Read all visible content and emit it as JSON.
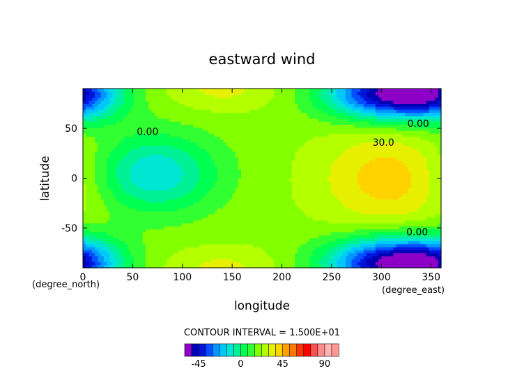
{
  "chart_data": {
    "type": "heatmap",
    "title": "eastward wind",
    "xlabel": "longitude",
    "ylabel": "latitude",
    "x_unit": "(degree_east)",
    "y_unit": "(degree_north)",
    "xlim": [
      0,
      360
    ],
    "ylim": [
      -90,
      90
    ],
    "x_ticks": [
      0,
      50,
      100,
      150,
      200,
      250,
      300,
      350
    ],
    "y_ticks": [
      -50,
      0,
      50
    ],
    "contour_interval_text": "CONTOUR INTERVAL = 1.500E+01",
    "contour_labels": [
      {
        "text": "0.00",
        "lon": 65,
        "lat": 47
      },
      {
        "text": "0.00",
        "lon": 337,
        "lat": 55
      },
      {
        "text": "30.0",
        "lon": 302,
        "lat": 36
      },
      {
        "text": "0.00",
        "lon": 336,
        "lat": -54
      }
    ],
    "colorbar": {
      "levels": [
        -60,
        -52.5,
        -45,
        -37.5,
        -30,
        -22.5,
        -15,
        -7.5,
        0,
        7.5,
        15,
        22.5,
        30,
        37.5,
        45,
        52.5,
        60,
        67.5,
        75,
        82.5,
        90,
        97.5,
        105
      ],
      "colors": [
        "#8c00c8",
        "#0000b4",
        "#0014dc",
        "#0050ff",
        "#0096ff",
        "#00c8ff",
        "#00e6d2",
        "#00f096",
        "#00ff50",
        "#32ff32",
        "#82ff00",
        "#b4ff00",
        "#e6f000",
        "#ffd200",
        "#ffa000",
        "#ff7800",
        "#ff3200",
        "#ff0000",
        "#ff5050",
        "#ff8c8c",
        "#ffb4b4",
        "#ff9696"
      ],
      "tick_values": [
        -45,
        0,
        45,
        90
      ]
    },
    "field": {
      "grid_lon_step": 10,
      "grid_lat_step": 10,
      "baseline": 20,
      "features": [
        {
          "lon": 70,
          "lat": 5,
          "amp": -35,
          "sigma_lon": 45,
          "sigma_lat": 28
        },
        {
          "lon": 310,
          "lat": 0,
          "amp": 22,
          "sigma_lon": 50,
          "sigma_lat": 35
        },
        {
          "lon": 310,
          "lat": 85,
          "amp": -75,
          "sigma_lon": 45,
          "sigma_lat": 18
        },
        {
          "lon": 310,
          "lat": -85,
          "amp": -75,
          "sigma_lon": 45,
          "sigma_lat": 18
        },
        {
          "lon": 140,
          "lat": 90,
          "amp": 12,
          "sigma_lon": 40,
          "sigma_lat": 15
        },
        {
          "lon": 140,
          "lat": -90,
          "amp": 12,
          "sigma_lon": 40,
          "sigma_lat": 15
        },
        {
          "lon": 0,
          "lat": 85,
          "amp": -30,
          "sigma_lon": 30,
          "sigma_lat": 20
        },
        {
          "lon": 0,
          "lat": -85,
          "amp": -30,
          "sigma_lon": 30,
          "sigma_lat": 20
        }
      ]
    }
  }
}
